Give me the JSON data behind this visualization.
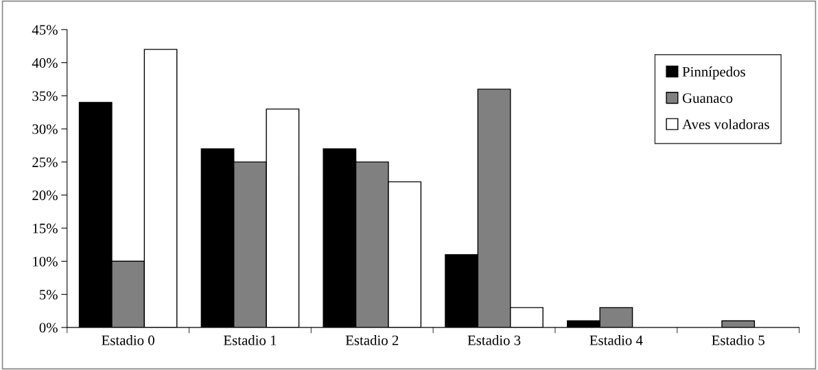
{
  "chart_data": {
    "type": "bar",
    "categories": [
      "Estadio 0",
      "Estadio 1",
      "Estadio 2",
      "Estadio 3",
      "Estadio 4",
      "Estadio 5"
    ],
    "series": [
      {
        "name": "Pinnípedos",
        "color": "#000000",
        "values": [
          34,
          27,
          27,
          11,
          1,
          0
        ]
      },
      {
        "name": "Guanaco",
        "color": "#808080",
        "values": [
          10,
          25,
          25,
          36,
          3,
          1
        ]
      },
      {
        "name": "Aves voladoras",
        "color": "#ffffff",
        "values": [
          42,
          33,
          22,
          3,
          0,
          0
        ]
      }
    ],
    "ylim": [
      0,
      45
    ],
    "yticks": [
      {
        "value": 0,
        "label": "0%"
      },
      {
        "value": 5,
        "label": "5%"
      },
      {
        "value": 10,
        "label": "10%"
      },
      {
        "value": 15,
        "label": "15%"
      },
      {
        "value": 20,
        "label": "20%"
      },
      {
        "value": 25,
        "label": "25%"
      },
      {
        "value": 30,
        "label": "30%"
      },
      {
        "value": 35,
        "label": "35%"
      },
      {
        "value": 40,
        "label": "40%"
      },
      {
        "value": 45,
        "label": "45%"
      }
    ],
    "grid": false,
    "legend": "top right"
  }
}
